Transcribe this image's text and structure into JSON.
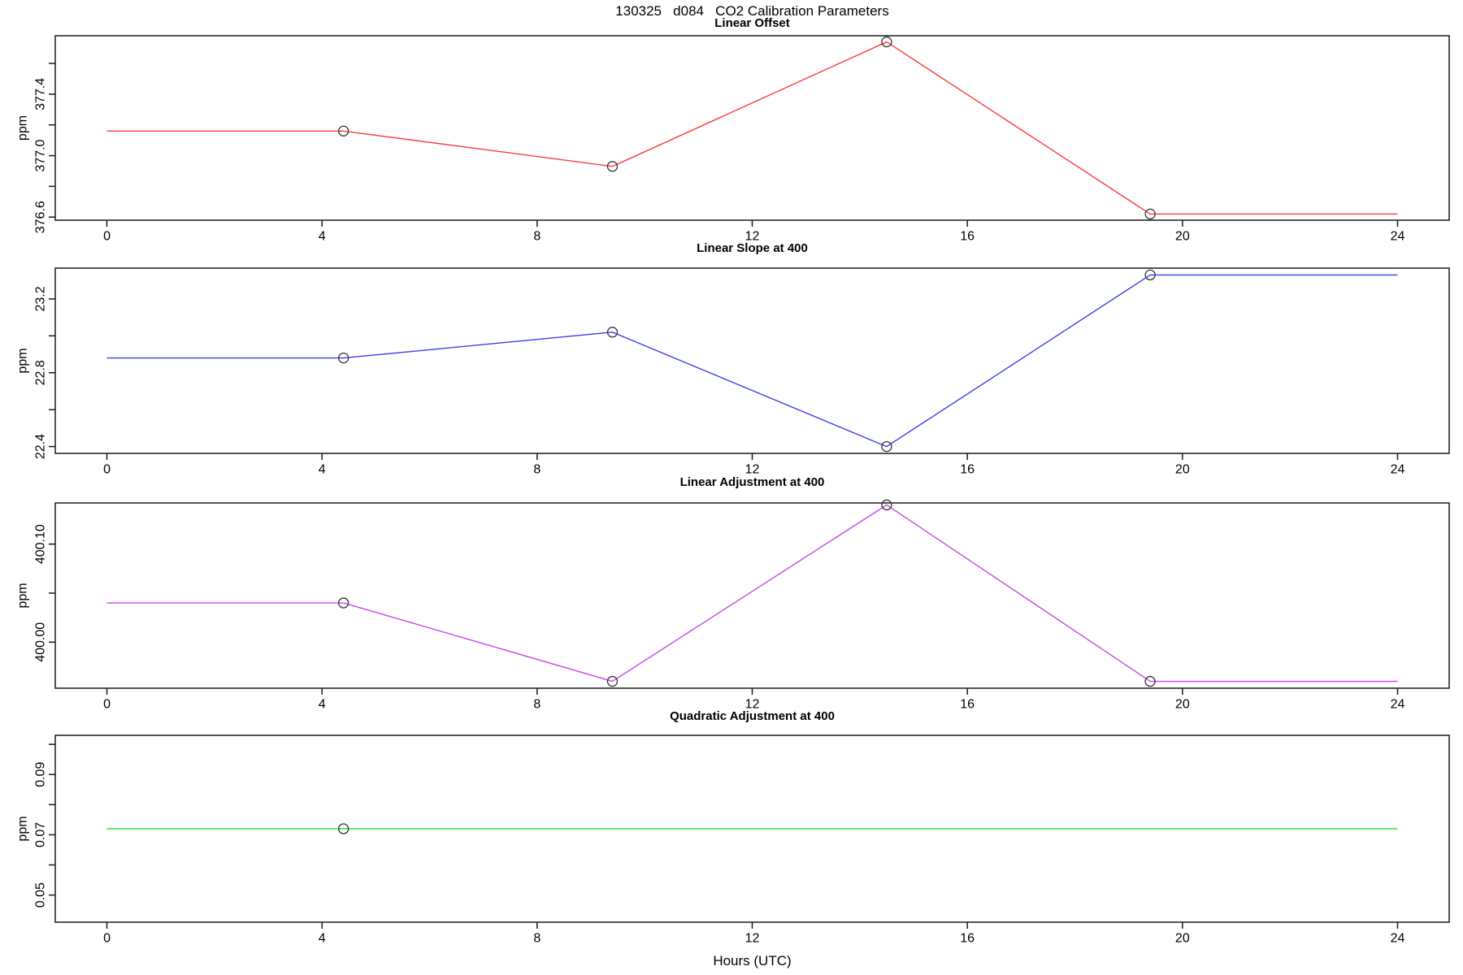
{
  "figure": {
    "main_title": "130325   d084   CO2 Calibration Parameters",
    "xlabel": "Hours (UTC)"
  },
  "chart_data": [
    {
      "type": "line",
      "title": "Linear Offset",
      "ylabel": "ppm",
      "line_color": "#f93c3c",
      "marker_color": "#333333",
      "x": [
        0,
        4.4,
        9.4,
        14.5,
        19.4,
        24
      ],
      "y": [
        377.16,
        377.16,
        376.93,
        377.74,
        376.62,
        376.62
      ],
      "marker_x": [
        4.4,
        9.4,
        14.5,
        19.4
      ],
      "marker_y": [
        377.16,
        376.93,
        377.74,
        376.62
      ],
      "xlim": [
        -0.96,
        24.96
      ],
      "ylim": [
        376.58,
        377.78
      ],
      "xticks": [
        0,
        4,
        8,
        12,
        16,
        20,
        24
      ],
      "xtick_labels": [
        "0",
        "4",
        "8",
        "12",
        "16",
        "20",
        "24"
      ],
      "yticks": [
        376.6,
        376.8,
        377.0,
        377.2,
        377.4,
        377.6
      ],
      "ytick_labels": [
        "376.6",
        "",
        "377.0",
        "",
        "377.4",
        ""
      ]
    },
    {
      "type": "line",
      "title": "Linear Slope at 400",
      "ylabel": "ppm",
      "line_color": "#3d3dee",
      "marker_color": "#333333",
      "x": [
        0,
        4.4,
        9.4,
        14.5,
        19.4,
        24
      ],
      "y": [
        22.88,
        22.88,
        23.02,
        22.4,
        23.33,
        23.33
      ],
      "marker_x": [
        4.4,
        9.4,
        14.5,
        19.4
      ],
      "marker_y": [
        22.88,
        23.02,
        22.4,
        23.33
      ],
      "xlim": [
        -0.96,
        24.96
      ],
      "ylim": [
        22.363,
        23.367
      ],
      "xticks": [
        0,
        4,
        8,
        12,
        16,
        20,
        24
      ],
      "xtick_labels": [
        "0",
        "4",
        "8",
        "12",
        "16",
        "20",
        "24"
      ],
      "yticks": [
        22.4,
        22.6,
        22.8,
        23.0,
        23.2
      ],
      "ytick_labels": [
        "22.4",
        "",
        "22.8",
        "",
        "23.2"
      ]
    },
    {
      "type": "line",
      "title": "Linear Adjustment at 400",
      "ylabel": "ppm",
      "line_color": "#c646e8",
      "marker_color": "#333333",
      "x": [
        0,
        4.4,
        9.4,
        14.5,
        19.4,
        24
      ],
      "y": [
        400.04,
        400.04,
        399.96,
        400.14,
        399.96,
        399.96
      ],
      "marker_x": [
        4.4,
        9.4,
        14.5,
        19.4
      ],
      "marker_y": [
        400.04,
        399.96,
        400.14,
        399.96
      ],
      "xlim": [
        -0.96,
        24.96
      ],
      "ylim": [
        399.953,
        400.142
      ],
      "xticks": [
        0,
        4,
        8,
        12,
        16,
        20,
        24
      ],
      "xtick_labels": [
        "0",
        "4",
        "8",
        "12",
        "16",
        "20",
        "24"
      ],
      "yticks": [
        400.0,
        400.05,
        400.1
      ],
      "ytick_labels": [
        "400.00",
        "",
        "400.10"
      ]
    },
    {
      "type": "line",
      "title": "Quadratic Adjustment at 400",
      "ylabel": "ppm",
      "line_color": "#2ee02e",
      "marker_color": "#333333",
      "x": [
        0,
        24
      ],
      "y": [
        0.072,
        0.072
      ],
      "marker_x": [
        4.4
      ],
      "marker_y": [
        0.072
      ],
      "xlim": [
        -0.96,
        24.96
      ],
      "ylim": [
        0.041,
        0.103
      ],
      "xticks": [
        0,
        4,
        8,
        12,
        16,
        20,
        24
      ],
      "xtick_labels": [
        "0",
        "4",
        "8",
        "12",
        "16",
        "20",
        "24"
      ],
      "yticks": [
        0.05,
        0.06,
        0.07,
        0.08,
        0.09,
        0.1
      ],
      "ytick_labels": [
        "0.05",
        "",
        "0.07",
        "",
        "0.09",
        ""
      ]
    }
  ]
}
